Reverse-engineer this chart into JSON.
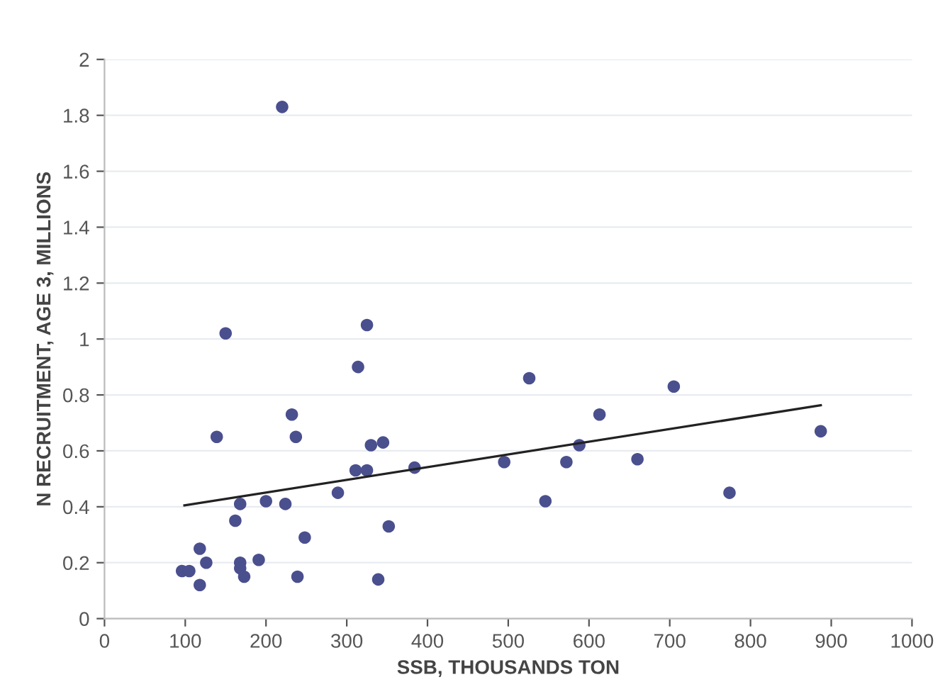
{
  "chart_data": {
    "type": "scatter",
    "xlabel": "SSB, THOUSANDS TON",
    "ylabel": "N RECRUITMENT, AGE 3, MILLIONS",
    "xlim": [
      0,
      1000
    ],
    "xticks": [
      0,
      100,
      200,
      300,
      400,
      500,
      600,
      700,
      800,
      900,
      1000
    ],
    "ylim": [
      0,
      2
    ],
    "yticks": [
      0,
      0.2,
      0.4,
      0.6,
      0.8,
      1,
      1.2,
      1.4,
      1.6,
      1.8,
      2
    ],
    "grid": "y",
    "legend": false,
    "marker": "circle",
    "series": [
      {
        "color": "#4a4f8e",
        "x": [
          96,
          105,
          118,
          118,
          126,
          139,
          150,
          162,
          168,
          168,
          168,
          173,
          191,
          200,
          220,
          224,
          232,
          237,
          239,
          248,
          289,
          314,
          325,
          311,
          325,
          330,
          345,
          339,
          352,
          384,
          495,
          526,
          546,
          572,
          588,
          613,
          660,
          705,
          774,
          887
        ],
        "values": [
          0.17,
          0.17,
          0.12,
          0.25,
          0.2,
          0.65,
          1.02,
          0.35,
          0.41,
          0.2,
          0.18,
          0.15,
          0.21,
          0.42,
          1.83,
          0.41,
          0.73,
          0.65,
          0.15,
          0.29,
          0.45,
          0.9,
          1.05,
          0.53,
          0.53,
          0.62,
          0.63,
          0.14,
          0.33,
          0.54,
          0.56,
          0.86,
          0.42,
          0.56,
          0.62,
          0.73,
          0.57,
          0.83,
          0.45,
          0.67
        ]
      },
      {
        "type": "line",
        "color": "#222222",
        "marker": "none",
        "line_style": "solid",
        "x": [
          99,
          887
        ],
        "values": [
          0.405,
          0.763
        ]
      }
    ]
  }
}
